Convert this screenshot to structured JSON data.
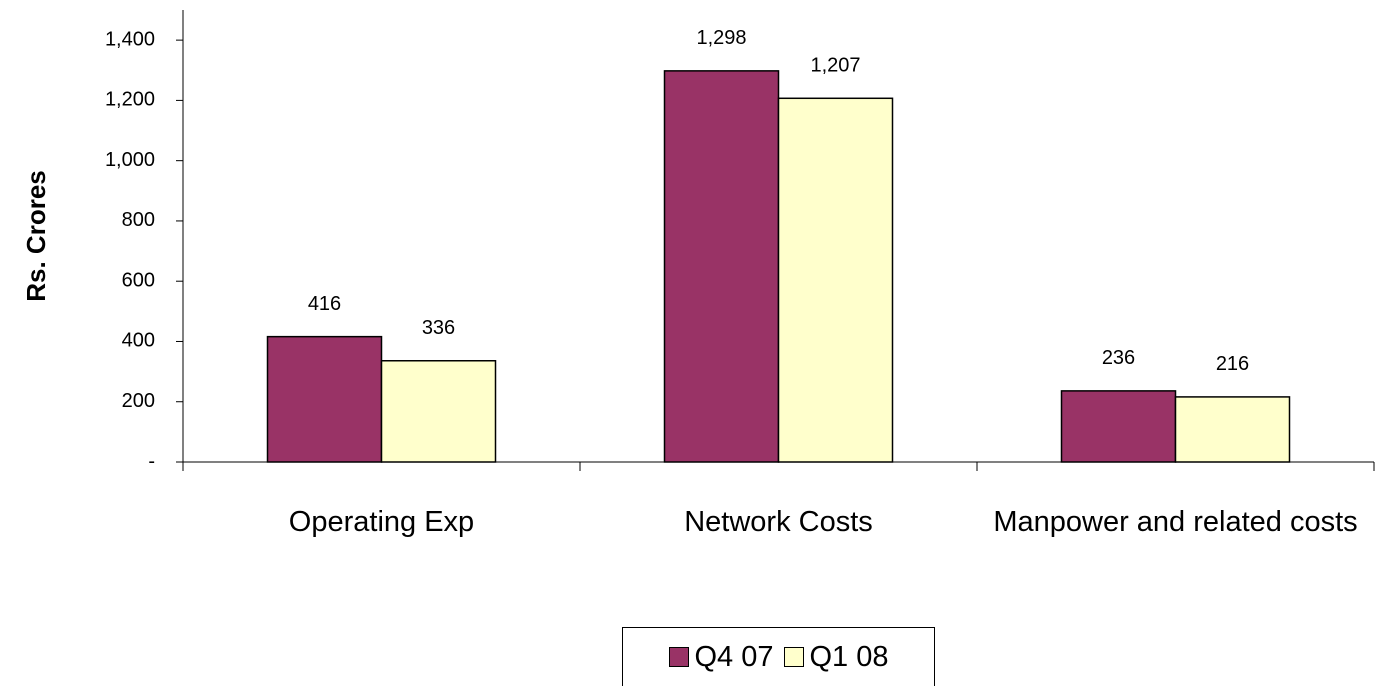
{
  "chart_data": {
    "type": "bar",
    "y_label": "Rs. Crores",
    "categories": [
      "Operating Exp",
      "Network Costs",
      "Manpower and related costs"
    ],
    "series": [
      {
        "name": "Q4 07",
        "color": "#993366",
        "values": [
          416,
          1298,
          236
        ],
        "value_labels": [
          "416",
          "1,298",
          "236"
        ]
      },
      {
        "name": "Q1 08",
        "color": "#ffffcc",
        "values": [
          336,
          1207,
          216
        ],
        "value_labels": [
          "336",
          "1,207",
          "216"
        ]
      }
    ],
    "ylim": [
      0,
      1500
    ],
    "yticks": [
      {
        "value": 0,
        "label": "-"
      },
      200,
      400,
      600,
      800,
      {
        "value": 1000,
        "label": "1,000"
      },
      {
        "value": 1200,
        "label": "1,200"
      },
      {
        "value": 1400,
        "label": "1,400"
      }
    ],
    "grid": false,
    "legend": "bottom"
  }
}
